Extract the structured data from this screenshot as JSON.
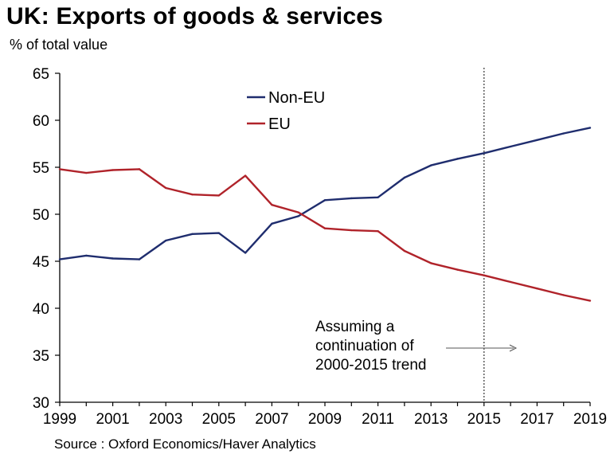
{
  "chart_data": {
    "type": "line",
    "title": "UK: Exports of goods & services",
    "ylabel": "% of total value",
    "ylim": [
      30,
      65
    ],
    "y_ticks": [
      65,
      60,
      55,
      50,
      45,
      40,
      35,
      30
    ],
    "xlim": [
      1999,
      2019
    ],
    "x_ticks": [
      1999,
      2001,
      2003,
      2005,
      2007,
      2009,
      2011,
      2013,
      2015,
      2017,
      2019
    ],
    "x": [
      1999,
      2000,
      2001,
      2002,
      2003,
      2004,
      2005,
      2006,
      2007,
      2008,
      2009,
      2010,
      2011,
      2012,
      2013,
      2014,
      2015,
      2016,
      2017,
      2018,
      2019
    ],
    "series": [
      {
        "name": "Non-EU",
        "color": "#1f2d6e",
        "values": [
          45.2,
          45.6,
          45.3,
          45.2,
          47.2,
          47.9,
          48.0,
          45.9,
          49.0,
          49.8,
          51.5,
          51.7,
          51.8,
          53.9,
          55.2,
          55.9,
          56.5,
          57.2,
          57.9,
          58.6,
          59.2
        ]
      },
      {
        "name": "EU",
        "color": "#b0232a",
        "values": [
          54.8,
          54.4,
          54.7,
          54.8,
          52.8,
          52.1,
          52.0,
          54.1,
          51.0,
          50.2,
          48.5,
          48.3,
          48.2,
          46.1,
          44.8,
          44.1,
          43.5,
          42.8,
          42.1,
          41.4,
          40.8
        ]
      }
    ],
    "projection_line_x": 2015,
    "annotation": {
      "lines": [
        "Assuming a",
        "continuation of",
        "2000-2015 trend"
      ]
    },
    "source": "Source : Oxford Economics/Haver Analytics",
    "grid": false,
    "legend_position": "top-center"
  }
}
